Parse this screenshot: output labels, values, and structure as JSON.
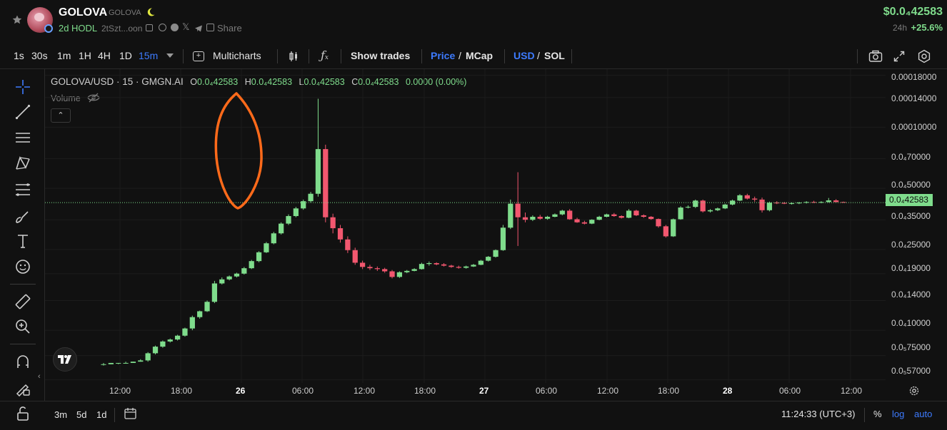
{
  "header": {
    "token_name": "GOLOVA",
    "token_symbol": "GOLOVA",
    "age": "2d",
    "hodl": "HODL",
    "address": "2tSzt...oon",
    "share_label": "Share",
    "price": "$0.0₄42583",
    "change_period": "24h",
    "change_value": "+25.6%"
  },
  "toolbar": {
    "timeframes": [
      "1s",
      "30s",
      "1m",
      "1H",
      "4H",
      "1D",
      "15m"
    ],
    "active_timeframe": "15m",
    "multicharts_label": "Multicharts",
    "show_trades_label": "Show trades",
    "price_label": "Price",
    "mcap_label": "MCap",
    "usd_label": "USD",
    "sol_label": "SOL",
    "slash": "/"
  },
  "legend": {
    "symbol": "GOLOVA/USD · 15 · GMGN.AI",
    "o_label": "O",
    "o_value": "0.0₄42583",
    "h_label": "H",
    "h_value": "0.0₄42583",
    "l_label": "L",
    "l_value": "0.0₄42583",
    "c_label": "C",
    "c_value": "0.0₄42583",
    "change": "0.0000 (0.00%)",
    "volume_label": "Volume"
  },
  "y_axis": {
    "ticks": [
      "0.00018000",
      "0.00014000",
      "0.00010000",
      "0.0₄70000",
      "0.0₄50000",
      "0.0₄35000",
      "0.0₄25000",
      "0.0₄19000",
      "0.0₄14000",
      "0.0₄10000",
      "0.0₅75000",
      "0.0₅57000"
    ],
    "current_price_label": "0.0₄42583"
  },
  "x_axis": {
    "ticks": [
      "12:00",
      "18:00",
      "26",
      "06:00",
      "12:00",
      "18:00",
      "27",
      "06:00",
      "12:00",
      "18:00",
      "28",
      "06:00",
      "12:00"
    ]
  },
  "bottom_bar": {
    "ranges": [
      "3m",
      "5d",
      "1d"
    ],
    "time": "11:24:33 (UTC+3)",
    "percent_label": "%",
    "log_label": "log",
    "auto_label": "auto"
  },
  "colors": {
    "up": "#7fdc8c",
    "down": "#f2576f",
    "accent_blue": "#3d7bff",
    "annotation": "#ff6a1a",
    "background": "#111111"
  },
  "chart_data": {
    "type": "candlestick",
    "scale": "log",
    "series": [
      {
        "values": [
          [
            6.8e-06,
            6.9e-06,
            6.7e-06,
            6.8e-06
          ],
          [
            6.8e-06,
            6.9e-06,
            6.8e-06,
            6.9e-06
          ],
          [
            6.9e-06,
            6.9e-06,
            6.8e-06,
            6.9e-06
          ],
          [
            6.9e-06,
            7e-06,
            6.9e-06,
            6.9e-06
          ],
          [
            6.9e-06,
            7e-06,
            6.9e-06,
            7e-06
          ],
          [
            7e-06,
            7.2e-06,
            7e-06,
            7.1e-06
          ],
          [
            7.1e-06,
            7.8e-06,
            7e-06,
            7.7e-06
          ],
          [
            7.7e-06,
            8.4e-06,
            7.6e-06,
            8.3e-06
          ],
          [
            8.3e-06,
            8.9e-06,
            8.2e-06,
            8.8e-06
          ],
          [
            8.8e-06,
            9.1e-06,
            8.7e-06,
            9e-06
          ],
          [
            9e-06,
            9.5e-06,
            8.9e-06,
            9.4e-06
          ],
          [
            9.4e-06,
            1.03e-05,
            9.3e-06,
            1.02e-05
          ],
          [
            1.02e-05,
            1.18e-05,
            1e-05,
            1.16e-05
          ],
          [
            1.16e-05,
            1.25e-05,
            1.14e-05,
            1.24e-05
          ],
          [
            1.24e-05,
            1.4e-05,
            1.23e-05,
            1.38e-05
          ],
          [
            1.38e-05,
            1.75e-05,
            1.36e-05,
            1.7e-05
          ],
          [
            1.7e-05,
            1.82e-05,
            1.68e-05,
            1.78e-05
          ],
          [
            1.78e-05,
            1.86e-05,
            1.76e-05,
            1.84e-05
          ],
          [
            1.84e-05,
            1.92e-05,
            1.82e-05,
            1.9e-05
          ],
          [
            1.9e-05,
            2.05e-05,
            1.88e-05,
            2.02e-05
          ],
          [
            2.02e-05,
            2.22e-05,
            2e-05,
            2.19e-05
          ],
          [
            2.19e-05,
            2.45e-05,
            2.16e-05,
            2.42e-05
          ],
          [
            2.42e-05,
            2.72e-05,
            2.4e-05,
            2.68e-05
          ],
          [
            2.68e-05,
            3.05e-05,
            2.65e-05,
            3e-05
          ],
          [
            3e-05,
            3.4e-05,
            2.96e-05,
            3.35e-05
          ],
          [
            3.35e-05,
            3.72e-05,
            3.3e-05,
            3.65e-05
          ],
          [
            3.65e-05,
            4.05e-05,
            3.6e-05,
            3.98e-05
          ],
          [
            3.98e-05,
            4.4e-05,
            3.92e-05,
            4.32e-05
          ],
          [
            4.32e-05,
            4.8e-05,
            4.25e-05,
            4.7e-05
          ],
          [
            4.7e-05,
            0.000138,
            4.55e-05,
            7.8e-05
          ],
          [
            7.8e-05,
            8.2e-05,
            3.4e-05,
            3.6e-05
          ],
          [
            3.6e-05,
            3.75e-05,
            3e-05,
            3.18e-05
          ],
          [
            3.18e-05,
            3.3e-05,
            2.7e-05,
            2.8e-05
          ],
          [
            2.8e-05,
            2.9e-05,
            2.4e-05,
            2.48e-05
          ],
          [
            2.48e-05,
            2.55e-05,
            2.1e-05,
            2.15e-05
          ],
          [
            2.15e-05,
            2.2e-05,
            2e-05,
            2.05e-05
          ],
          [
            2.05e-05,
            2.1e-05,
            1.98e-05,
            2.02e-05
          ],
          [
            2.02e-05,
            2.06e-05,
            1.96e-05,
            2e-05
          ],
          [
            2e-05,
            2.03e-05,
            1.92e-05,
            1.95e-05
          ],
          [
            1.95e-05,
            1.98e-05,
            1.8e-05,
            1.83e-05
          ],
          [
            1.83e-05,
            1.95e-05,
            1.81e-05,
            1.93e-05
          ],
          [
            1.93e-05,
            1.98e-05,
            1.91e-05,
            1.96e-05
          ],
          [
            1.96e-05,
            2.02e-05,
            1.95e-05,
            2e-05
          ],
          [
            2e-05,
            2.15e-05,
            1.99e-05,
            2.12e-05
          ],
          [
            2.12e-05,
            2.18e-05,
            2.08e-05,
            2.14e-05
          ],
          [
            2.14e-05,
            2.16e-05,
            2.09e-05,
            2.11e-05
          ],
          [
            2.11e-05,
            2.14e-05,
            2.06e-05,
            2.08e-05
          ],
          [
            2.08e-05,
            2.1e-05,
            2.03e-05,
            2.05e-05
          ],
          [
            2.05e-05,
            2.08e-05,
            2.01e-05,
            2.03e-05
          ],
          [
            2.03e-05,
            2.08e-05,
            2.01e-05,
            2.06e-05
          ],
          [
            2.06e-05,
            2.12e-05,
            2.05e-05,
            2.1e-05
          ],
          [
            2.1e-05,
            2.22e-05,
            2.09e-05,
            2.2e-05
          ],
          [
            2.2e-05,
            2.32e-05,
            2.18e-05,
            2.3e-05
          ],
          [
            2.3e-05,
            2.5e-05,
            2.28e-05,
            2.48e-05
          ],
          [
            2.48e-05,
            3.3e-05,
            2.46e-05,
            3.2e-05
          ],
          [
            3.2e-05,
            4.4e-05,
            3.15e-05,
            4.2e-05
          ],
          [
            4.2e-05,
            6e-05,
            2.6e-05,
            3.6e-05
          ],
          [
            3.6e-05,
            3.8e-05,
            3.4e-05,
            3.5e-05
          ],
          [
            3.5e-05,
            3.68e-05,
            3.45e-05,
            3.62e-05
          ],
          [
            3.62e-05,
            3.7e-05,
            3.5e-05,
            3.54e-05
          ],
          [
            3.54e-05,
            3.66e-05,
            3.5e-05,
            3.62e-05
          ],
          [
            3.62e-05,
            3.76e-05,
            3.6e-05,
            3.72e-05
          ],
          [
            3.72e-05,
            3.92e-05,
            3.68e-05,
            3.88e-05
          ],
          [
            3.88e-05,
            3.95e-05,
            3.5e-05,
            3.52e-05
          ],
          [
            3.52e-05,
            3.58e-05,
            3.38e-05,
            3.4e-05
          ],
          [
            3.4e-05,
            3.46e-05,
            3.32e-05,
            3.35e-05
          ],
          [
            3.35e-05,
            3.52e-05,
            3.33e-05,
            3.5e-05
          ],
          [
            3.5e-05,
            3.66e-05,
            3.48e-05,
            3.62e-05
          ],
          [
            3.62e-05,
            3.75e-05,
            3.6e-05,
            3.72e-05
          ],
          [
            3.72e-05,
            3.78e-05,
            3.62e-05,
            3.65e-05
          ],
          [
            3.65e-05,
            3.68e-05,
            3.55e-05,
            3.58e-05
          ],
          [
            3.58e-05,
            3.95e-05,
            3.56e-05,
            3.88e-05
          ],
          [
            3.88e-05,
            3.92e-05,
            3.65e-05,
            3.68e-05
          ],
          [
            3.68e-05,
            3.72e-05,
            3.58e-05,
            3.62e-05
          ],
          [
            3.62e-05,
            3.65e-05,
            3.5e-05,
            3.53e-05
          ],
          [
            3.53e-05,
            3.55e-05,
            3.2e-05,
            3.25e-05
          ],
          [
            3.25e-05,
            3.3e-05,
            2.86e-05,
            2.9e-05
          ],
          [
            2.9e-05,
            3.55e-05,
            2.88e-05,
            3.52e-05
          ],
          [
            3.52e-05,
            4.08e-05,
            3.5e-05,
            4.02e-05
          ],
          [
            4.02e-05,
            4.12e-05,
            3.98e-05,
            4.05e-05
          ],
          [
            4.05e-05,
            4.4e-05,
            4e-05,
            4.35e-05
          ],
          [
            4.35e-05,
            4.4e-05,
            3.8e-05,
            3.85e-05
          ],
          [
            3.85e-05,
            3.95e-05,
            3.8e-05,
            3.9e-05
          ],
          [
            3.9e-05,
            4.02e-05,
            3.86e-05,
            3.98e-05
          ],
          [
            3.98e-05,
            4.2e-05,
            3.95e-05,
            4.16e-05
          ],
          [
            4.16e-05,
            4.4e-05,
            4.12e-05,
            4.35e-05
          ],
          [
            4.35e-05,
            4.68e-05,
            4.32e-05,
            4.62e-05
          ],
          [
            4.62e-05,
            4.7e-05,
            4.4e-05,
            4.45e-05
          ],
          [
            4.45e-05,
            4.55e-05,
            4.3e-05,
            4.4e-05
          ],
          [
            4.4e-05,
            4.5e-05,
            3.8e-05,
            3.9e-05
          ],
          [
            3.9e-05,
            4.3e-05,
            3.85e-05,
            4.25e-05
          ],
          [
            4.25e-05,
            4.32e-05,
            4.18e-05,
            4.24e-05
          ],
          [
            4.24e-05,
            4.28e-05,
            4.18e-05,
            4.2e-05
          ],
          [
            4.2e-05,
            4.26e-05,
            4.16e-05,
            4.22e-05
          ],
          [
            4.22e-05,
            4.28e-05,
            4.18e-05,
            4.25e-05
          ],
          [
            4.25e-05,
            4.32e-05,
            4.21e-05,
            4.28e-05
          ],
          [
            4.28e-05,
            4.34e-05,
            4.23e-05,
            4.26e-05
          ],
          [
            4.26e-05,
            4.32e-05,
            4.22e-05,
            4.28e-05
          ],
          [
            4.28e-05,
            4.48e-05,
            4.25e-05,
            4.36e-05
          ],
          [
            4.36e-05,
            4.42e-05,
            4.26e-05,
            4.28e-05
          ],
          [
            4.28e-05,
            4.3e-05,
            4.24e-05,
            4.25e-05
          ]
        ]
      }
    ],
    "x_range": [
      "26 00:00 -18h",
      "28 12:00"
    ],
    "y_range": [
      5.5e-06,
      0.00019
    ]
  }
}
